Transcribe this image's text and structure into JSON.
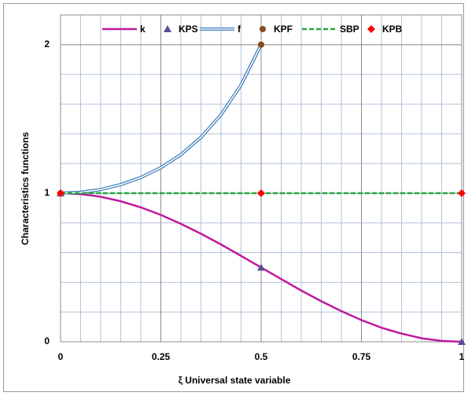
{
  "chart_data": {
    "type": "line",
    "x_label": "ξ Universal state variable",
    "y_label": "Characteristics functions",
    "xlim": [
      0,
      1
    ],
    "ylim": [
      0,
      2.2
    ],
    "xticks": [
      0,
      0.25,
      0.5,
      0.75,
      1
    ],
    "yticks": [
      0,
      1,
      2
    ],
    "grid": true,
    "series": [
      {
        "name": "k",
        "color": "#c0189c",
        "style": "line",
        "x": [
          0,
          0.05,
          0.1,
          0.15,
          0.2,
          0.25,
          0.3,
          0.35,
          0.4,
          0.45,
          0.5,
          0.55,
          0.6,
          0.65,
          0.7,
          0.75,
          0.8,
          0.85,
          0.9,
          0.95,
          1
        ],
        "values": [
          1,
          0.994,
          0.976,
          0.946,
          0.905,
          0.854,
          0.794,
          0.727,
          0.655,
          0.578,
          0.5,
          0.422,
          0.345,
          0.273,
          0.206,
          0.146,
          0.095,
          0.055,
          0.024,
          0.006,
          0
        ]
      },
      {
        "name": "KPS",
        "color": "#5a4b9c",
        "style": "marker",
        "marker": "triangle",
        "x": [
          0,
          0.5,
          1
        ],
        "values": [
          1,
          0.5,
          0
        ]
      },
      {
        "name": "f",
        "color": "#3a7ab8",
        "style": "double",
        "x": [
          0,
          0.05,
          0.1,
          0.15,
          0.2,
          0.25,
          0.3,
          0.35,
          0.4,
          0.45,
          0.5
        ],
        "values": [
          1,
          1.006,
          1.025,
          1.058,
          1.106,
          1.172,
          1.26,
          1.376,
          1.528,
          1.729,
          2
        ]
      },
      {
        "name": "KPF",
        "color": "#8b4a1c",
        "style": "marker",
        "marker": "circle",
        "x": [
          0,
          0.5
        ],
        "values": [
          1,
          2
        ]
      },
      {
        "name": "SBP",
        "color": "#1faa3c",
        "style": "dashed",
        "x": [
          0,
          1
        ],
        "values": [
          1,
          1
        ]
      },
      {
        "name": "KPB",
        "color": "#ff0000",
        "style": "marker",
        "marker": "diamond",
        "x": [
          0,
          0.5,
          1
        ],
        "values": [
          1,
          1,
          1
        ]
      }
    ]
  }
}
